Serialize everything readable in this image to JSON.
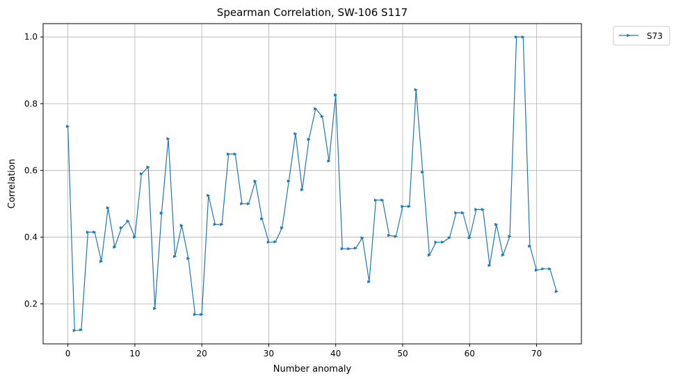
{
  "chart_data": {
    "type": "line",
    "title": "Spearman Correlation, SW-106  S117",
    "xlabel": "Number anomaly",
    "ylabel": "Correlation",
    "xlim": [
      -3.7,
      76.7
    ],
    "ylim": [
      0.08,
      1.04
    ],
    "xticks": [
      0,
      10,
      20,
      30,
      40,
      50,
      60,
      70
    ],
    "yticks": [
      0.2,
      0.4,
      0.6,
      0.8,
      1.0
    ],
    "ytick_labels": [
      "0.2",
      "0.4",
      "0.6",
      "0.8",
      "1.0"
    ],
    "grid": true,
    "legend_position": "outside-top-right",
    "color": "#1f77b4",
    "marker": "triangle-right",
    "series": [
      {
        "name": "S73",
        "x": [
          0,
          1,
          2,
          3,
          4,
          5,
          6,
          7,
          8,
          9,
          10,
          11,
          12,
          13,
          14,
          15,
          16,
          17,
          18,
          19,
          20,
          21,
          22,
          23,
          24,
          25,
          26,
          27,
          28,
          29,
          30,
          31,
          32,
          33,
          34,
          35,
          36,
          37,
          38,
          39,
          40,
          41,
          42,
          43,
          44,
          45,
          46,
          47,
          48,
          49,
          50,
          51,
          52,
          53,
          54,
          55,
          56,
          57,
          58,
          59,
          60,
          61,
          62,
          63,
          64,
          65,
          66,
          67,
          68,
          69,
          70,
          71,
          72,
          73
        ],
        "values": [
          0.732,
          0.12,
          0.122,
          0.415,
          0.415,
          0.327,
          0.488,
          0.37,
          0.428,
          0.448,
          0.4,
          0.59,
          0.61,
          0.186,
          0.472,
          0.695,
          0.342,
          0.435,
          0.336,
          0.168,
          0.168,
          0.525,
          0.438,
          0.438,
          0.649,
          0.649,
          0.5,
          0.5,
          0.568,
          0.455,
          0.385,
          0.386,
          0.428,
          0.568,
          0.71,
          0.542,
          0.693,
          0.785,
          0.762,
          0.628,
          0.826,
          0.365,
          0.365,
          0.367,
          0.398,
          0.266,
          0.511,
          0.511,
          0.405,
          0.402,
          0.492,
          0.492,
          0.842,
          0.595,
          0.346,
          0.385,
          0.385,
          0.398,
          0.473,
          0.473,
          0.398,
          0.483,
          0.483,
          0.315,
          0.438,
          0.346,
          0.402,
          1.0,
          1.0,
          0.373,
          0.301,
          0.305,
          0.305,
          0.237
        ]
      }
    ]
  }
}
